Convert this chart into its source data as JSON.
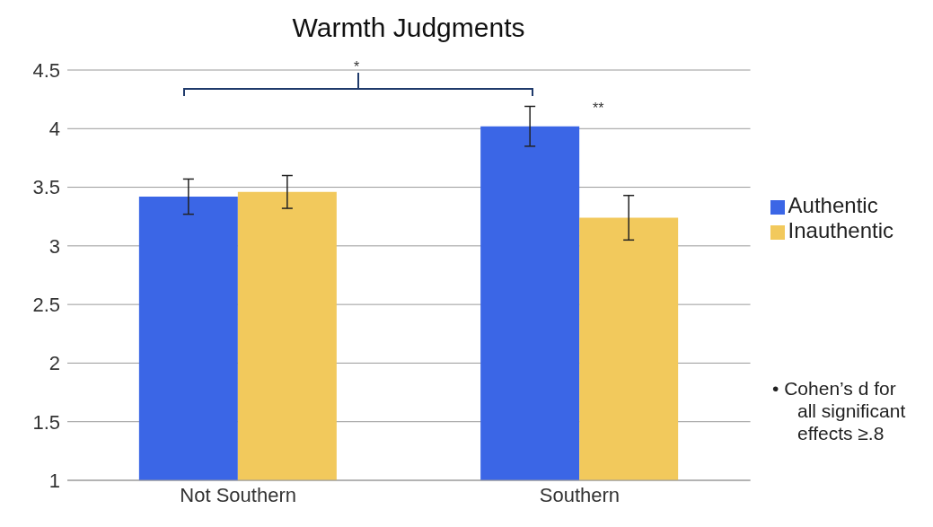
{
  "chart_data": {
    "type": "bar",
    "title": "Warmth Judgments",
    "categories": [
      "Not Southern",
      "Southern"
    ],
    "series": [
      {
        "name": "Authentic",
        "color": "#3b66e6",
        "values": [
          3.42,
          4.02
        ],
        "errors": [
          0.15,
          0.17
        ]
      },
      {
        "name": "Inauthentic",
        "color": "#f2c95c",
        "values": [
          3.46,
          3.24
        ],
        "errors": [
          0.14,
          0.19
        ]
      }
    ],
    "ylim": [
      1,
      4.5
    ],
    "yticks": [
      1,
      1.5,
      2,
      2.5,
      3,
      3.5,
      4,
      4.5
    ],
    "grid": "y",
    "legend": "right",
    "annotations": [
      "*",
      "**",
      "• Cohen’s d for all significant effects ≥.8"
    ]
  }
}
